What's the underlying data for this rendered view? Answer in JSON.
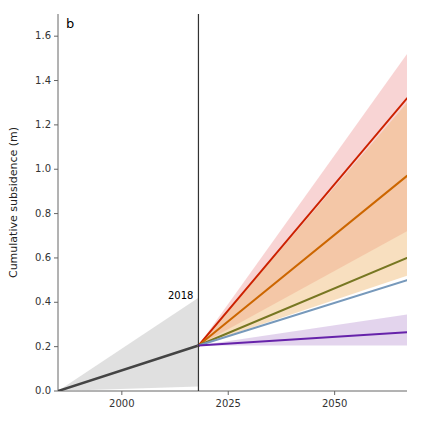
{
  "chart_data": {
    "type": "line",
    "title": "b",
    "ylabel": "Cumulative subsidence (m)",
    "xlim": [
      1985,
      2067
    ],
    "ylim": [
      0,
      1.7
    ],
    "xticks": [
      2000,
      2025,
      2050
    ],
    "yticks": [
      {
        "value": 0,
        "label": "0.0"
      },
      0.2,
      0.4,
      0.6,
      0.8,
      {
        "value": 1.0,
        "label": "1.0"
      },
      1.2,
      1.4,
      1.6
    ],
    "annotations": [
      {
        "text": "2018",
        "x": 2018,
        "y": 0.43,
        "color": "#333333"
      }
    ],
    "series": [
      {
        "color": "#444444",
        "x": [
          1985,
          2018
        ],
        "values": [
          0,
          0.205
        ],
        "band_low": [
          0,
          0.02
        ],
        "band_high": [
          0,
          0.42
        ],
        "band_color": "#bbbbbb"
      },
      {
        "color": "#cc2200",
        "x": [
          2018,
          2067
        ],
        "values": [
          0.205,
          1.32
        ],
        "band_low": [
          0.205,
          0.72
        ],
        "band_high": [
          0.205,
          1.52
        ],
        "band_color": "#f0a0a0"
      },
      {
        "color": "#cc6600",
        "x": [
          2018,
          2067
        ],
        "values": [
          0.205,
          0.97
        ],
        "band_low": [
          0.205,
          0.52
        ],
        "band_high": [
          0.205,
          1.3
        ],
        "band_color": "#f0b870"
      },
      {
        "color": "#777722",
        "x": [
          2018,
          2067
        ],
        "values": [
          0.205,
          0.6
        ]
      },
      {
        "color": "#7799bb",
        "x": [
          2018,
          2067
        ],
        "values": [
          0.205,
          0.5
        ]
      },
      {
        "color": "#6622aa",
        "x": [
          2018,
          2067
        ],
        "values": [
          0.205,
          0.265
        ],
        "band_low": [
          0.205,
          0.205
        ],
        "band_high": [
          0.205,
          0.345
        ],
        "band_color": "#c0a0d8"
      }
    ]
  }
}
